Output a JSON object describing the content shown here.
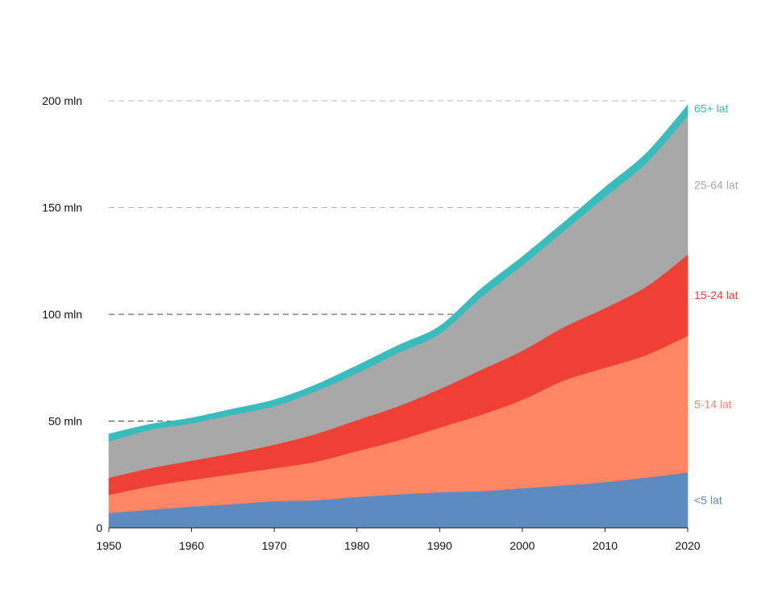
{
  "chart_data": {
    "type": "area",
    "stacked": true,
    "x": [
      1950,
      1955,
      1960,
      1965,
      1970,
      1975,
      1980,
      1985,
      1990,
      1995,
      2000,
      2005,
      2010,
      2015,
      2020
    ],
    "xticks": [
      "1950",
      "1960",
      "1970",
      "1980",
      "1990",
      "2000",
      "2010",
      "2020"
    ],
    "xtick_values": [
      1950,
      1960,
      1970,
      1980,
      1990,
      2000,
      2010,
      2020
    ],
    "yticks": [
      "0",
      "50 mln",
      "100 mln",
      "150 mln",
      "200 mln"
    ],
    "ytick_values": [
      0,
      50,
      100,
      150,
      200
    ],
    "xlim": [
      1950,
      2020
    ],
    "ylim": [
      0,
      200
    ],
    "grid": {
      "horizontal": true,
      "style": "dashed"
    },
    "series": [
      {
        "name": "<5 lat",
        "color": "#5e8bbf",
        "values": [
          7.0,
          8.5,
          10.0,
          11.2,
          12.5,
          13.0,
          14.5,
          15.7,
          16.7,
          17.3,
          18.6,
          19.9,
          21.5,
          23.6,
          26.0
        ]
      },
      {
        "name": "5-14 lat",
        "color": "#fe8664",
        "values": [
          8.5,
          11.0,
          12.5,
          14.0,
          15.5,
          18.0,
          21.5,
          25.3,
          30.3,
          35.7,
          41.4,
          49.1,
          53.5,
          57.4,
          64.0
        ]
      },
      {
        "name": "15-24 lat",
        "color": "#ef4035",
        "values": [
          8.0,
          8.5,
          9.0,
          9.8,
          11.0,
          13.0,
          14.5,
          16.0,
          18.0,
          21.0,
          23.0,
          25.0,
          28.0,
          32.0,
          38.0
        ]
      },
      {
        "name": "25-64 lat",
        "color": "#a7a8a7",
        "values": [
          17.0,
          18.0,
          17.5,
          18.0,
          18.0,
          20.0,
          22.0,
          25.0,
          26.0,
          34.0,
          40.0,
          45.0,
          52.0,
          58.0,
          65.0
        ]
      },
      {
        "name": "65+ lat",
        "color": "#38bcbc",
        "values": [
          3.5,
          2.5,
          2.5,
          2.7,
          3.0,
          3.0,
          3.5,
          3.5,
          3.5,
          4.0,
          4.0,
          4.0,
          4.5,
          4.5,
          5.0
        ]
      }
    ]
  }
}
